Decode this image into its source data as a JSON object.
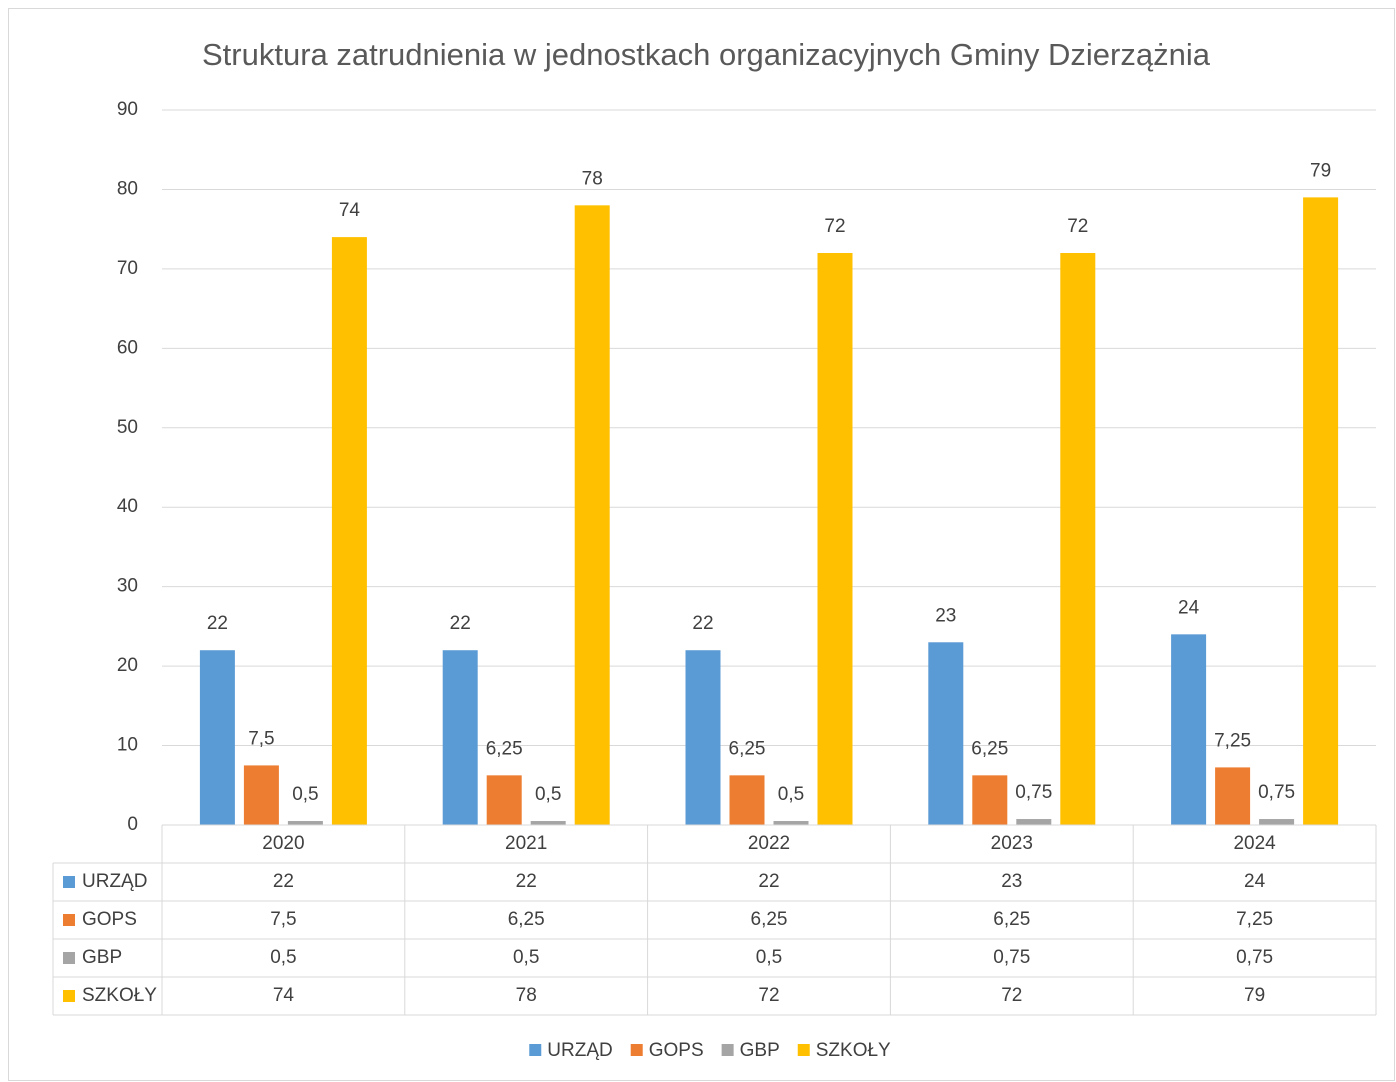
{
  "chart_data": {
    "type": "bar",
    "title": "Struktura zatrudnienia w jednostkach organizacyjnych Gminy Dzierzążnia",
    "categories": [
      "2020",
      "2021",
      "2022",
      "2023",
      "2024"
    ],
    "series": [
      {
        "name": "URZĄD",
        "color": "#5b9bd5",
        "values": [
          22,
          22,
          22,
          23,
          24
        ]
      },
      {
        "name": "GOPS",
        "color": "#ed7d31",
        "values": [
          7.5,
          6.25,
          6.25,
          6.25,
          7.25
        ],
        "value_labels": [
          "7,5",
          "6,25",
          "6,25",
          "6,25",
          "7,25"
        ]
      },
      {
        "name": "GBP",
        "color": "#a5a5a5",
        "values": [
          0.5,
          0.5,
          0.5,
          0.75,
          0.75
        ],
        "value_labels": [
          "0,5",
          "0,5",
          "0,5",
          "0,75",
          "0,75"
        ]
      },
      {
        "name": "SZKOŁY",
        "color": "#ffc000",
        "values": [
          74,
          78,
          72,
          72,
          79
        ]
      }
    ],
    "ylim": [
      0,
      90
    ],
    "yticks": [
      0,
      10,
      20,
      30,
      40,
      50,
      60,
      70,
      80,
      90
    ],
    "grid": true,
    "legend": "bottom",
    "data_table": true
  }
}
